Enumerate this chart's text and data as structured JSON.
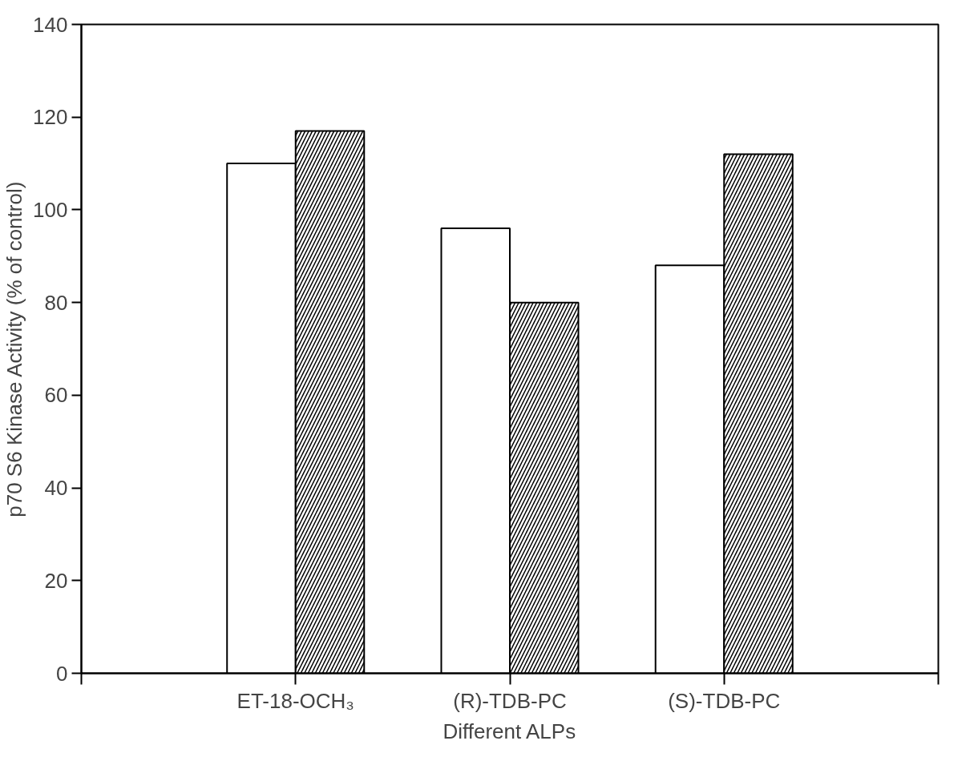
{
  "chart_data": {
    "type": "bar",
    "xlabel": "Different ALPs",
    "ylabel": "p70 S6 Kinase Activity (% of control)",
    "categories": [
      "ET-18-OCH₃",
      "(R)-TDB-PC",
      "(S)-TDB-PC"
    ],
    "series": [
      {
        "color": "#ffffff",
        "values": [
          110,
          96,
          88
        ]
      },
      {
        "color": "#ffffff",
        "values": [
          117,
          80,
          112
        ]
      }
    ],
    "ylim": [
      0,
      140
    ],
    "yticks": [
      0,
      20,
      40,
      60,
      80,
      100,
      120,
      140
    ],
    "grid": false
  }
}
